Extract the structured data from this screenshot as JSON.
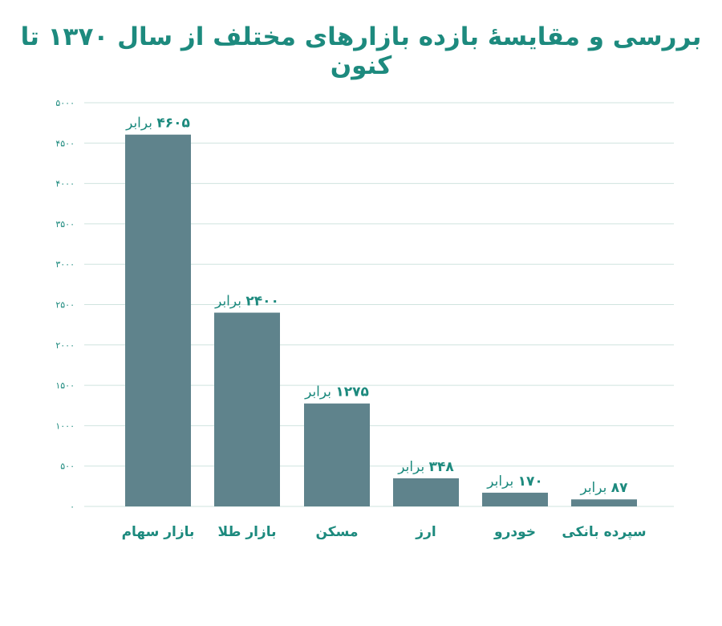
{
  "title": "بررسی و مقایسهٔ بازده بازارهای مختلف از سال ۱۳۷۰ تا کنون",
  "colors": {
    "bar": "#5f838c",
    "accent": "#1d8a7e",
    "grid": "#cfe3df",
    "text": "#1d8a7e"
  },
  "chart_data": {
    "type": "bar",
    "title": "بررسی و مقایسهٔ بازده بازارهای مختلف از سال ۱۳۷۰ تا کنون",
    "xlabel": "",
    "ylabel": "",
    "ylim": [
      0,
      5000
    ],
    "yticks": [
      0,
      500,
      1000,
      1500,
      2000,
      2500,
      3000,
      3500,
      4000,
      4500,
      5000
    ],
    "ytick_labels": [
      "۰",
      "۵۰۰",
      "۱۰۰۰",
      "۱۵۰۰",
      "۲۰۰۰",
      "۲۵۰۰",
      "۳۰۰۰",
      "۳۵۰۰",
      "۴۰۰۰",
      "۴۵۰۰",
      "۵۰۰۰"
    ],
    "grid": true,
    "categories": [
      "بازار سهام",
      "بازار طلا",
      "مسکن",
      "ارز",
      "خودرو",
      "سپرده بانکی"
    ],
    "values": [
      4605,
      2400,
      1275,
      348,
      170,
      87
    ],
    "value_labels": [
      "۴۶۰۵",
      "۲۴۰۰",
      "۱۲۷۵",
      "۳۴۸",
      "۱۷۰",
      "۸۷"
    ],
    "value_suffix": "برابر"
  }
}
